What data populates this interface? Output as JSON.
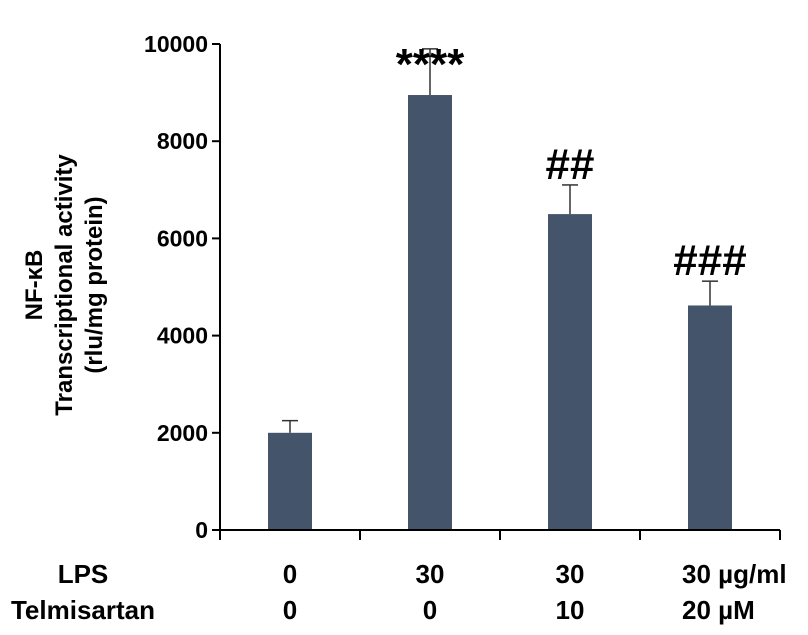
{
  "chart_data": {
    "type": "bar",
    "ylabel_lines": [
      "NF-κB",
      "Transcriptional activity",
      "(rlu/mg protein)"
    ],
    "ylim": [
      0,
      10000
    ],
    "yticks": [
      "0",
      "2000",
      "4000",
      "6000",
      "8000",
      "10000"
    ],
    "bar_color": "#44546a",
    "categories": [
      "0/0",
      "30/0",
      "30/10",
      "30/20"
    ],
    "values": [
      2000,
      8950,
      6500,
      4620
    ],
    "errors": [
      250,
      950,
      600,
      500
    ],
    "annotations": [
      "",
      "****",
      "##",
      "###"
    ],
    "rows": [
      {
        "label": "LPS",
        "values": [
          "0",
          "30",
          "30",
          "30 µg/ml"
        ]
      },
      {
        "label": "Telmisartan",
        "values": [
          "0",
          "0",
          "10",
          "20 µM"
        ]
      }
    ]
  }
}
